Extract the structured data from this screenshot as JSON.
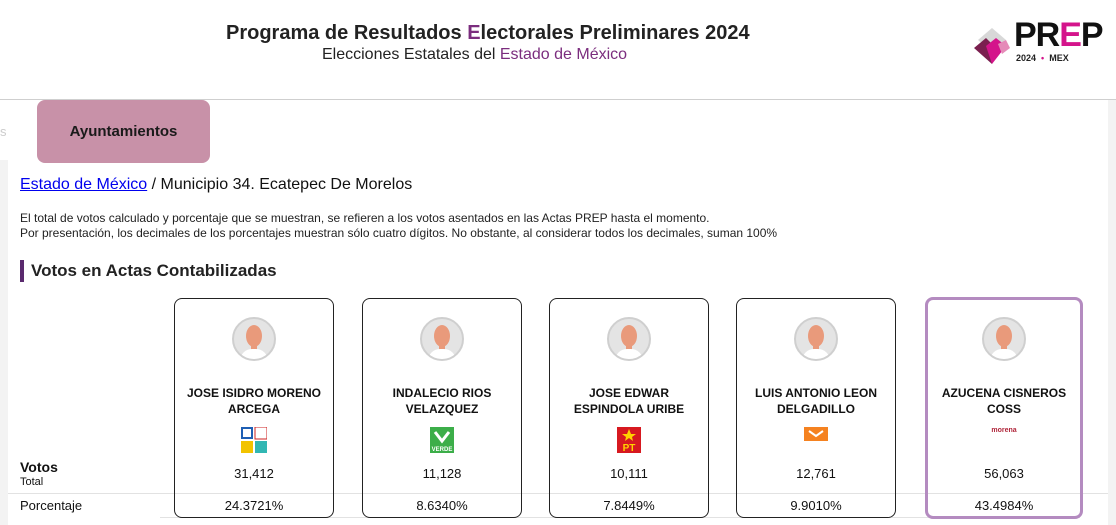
{
  "header": {
    "title_pre": "Programa de Resultados ",
    "title_highlight": "E",
    "title_post": "lectorales Preliminares 2024",
    "subtitle_pre": "Elecciones Estatales del ",
    "subtitle_highlight": "Estado de México"
  },
  "logo": {
    "word_a": "PR",
    "word_e": "E",
    "word_b": "P",
    "year": "2024",
    "dot": "•",
    "state": "MEX"
  },
  "tabs": {
    "ghost": "s",
    "active": "Ayuntamientos"
  },
  "breadcrumb": {
    "link": "Estado de México",
    "sep": " / ",
    "current": "Municipio 34. Ecatepec De Morelos"
  },
  "notes": [
    "El total de votos calculado y porcentaje que se muestran, se refieren a los votos asentados en las Actas PREP hasta el momento.",
    "Por presentación, los decimales de los porcentajes muestran sólo cuatro dígitos. No obstante, al considerar todos los decimales, suman 100%"
  ],
  "section_title": "Votos en Actas Contabilizadas",
  "row_labels": {
    "votes": "Votos",
    "total": "Total",
    "percent": "Porcentaje"
  },
  "candidates": [
    {
      "name": "JOSE ISIDRO MORENO ARCEGA",
      "party": "PAN-PRI-PRD-NAEM",
      "votes": "31,412",
      "percent": "24.3721%"
    },
    {
      "name": "INDALECIO RIOS VELAZQUEZ",
      "party": "VERDE",
      "votes": "11,128",
      "percent": "8.6340%"
    },
    {
      "name": "JOSE EDWAR ESPINDOLA URIBE",
      "party": "PT",
      "votes": "10,111",
      "percent": "7.8449%"
    },
    {
      "name": "LUIS ANTONIO LEON DELGADILLO",
      "party": "MC",
      "votes": "12,761",
      "percent": "9.9010%"
    },
    {
      "name": "AZUCENA CISNEROS COSS",
      "party": "morena",
      "votes": "56,063",
      "percent": "43.4984%",
      "leading": true
    }
  ],
  "colors": {
    "accent": "#7b2d7e",
    "tab": "#c891a8",
    "winner_border": "#b48bc0"
  }
}
